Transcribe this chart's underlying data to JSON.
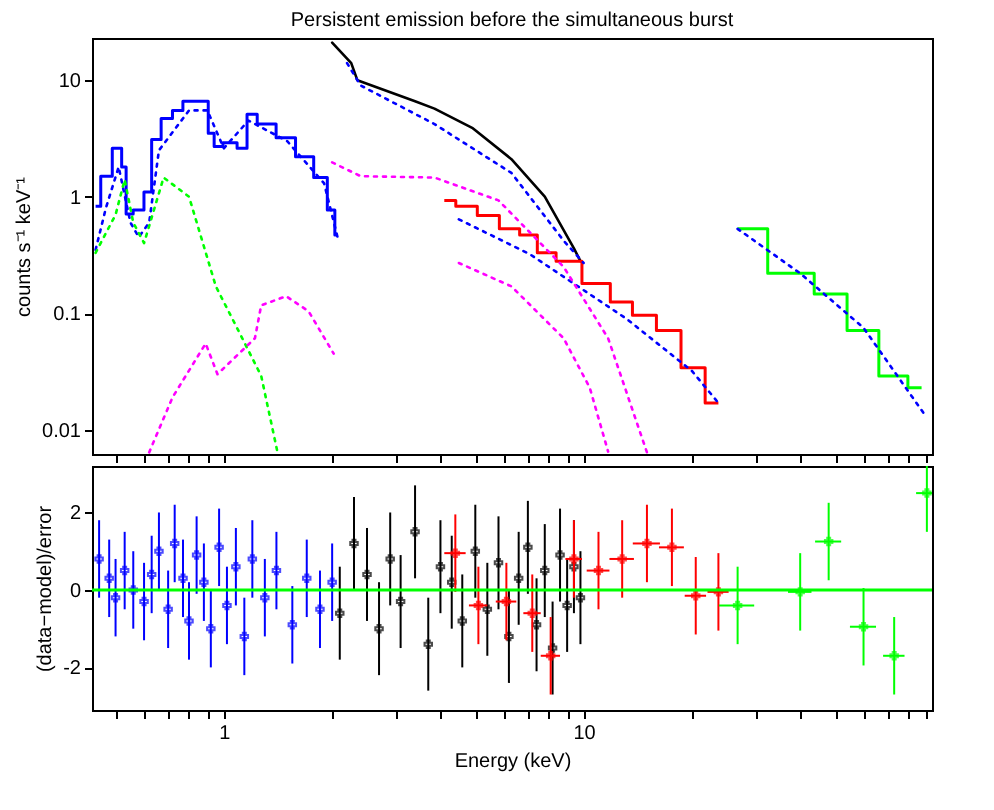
{
  "chart_data": [
    {
      "type": "line",
      "title": "Persistent emission before the simultaneous burst",
      "ylabel": "counts s⁻¹ keV⁻¹",
      "log": "xy",
      "tick_labels": "y",
      "grid": false,
      "xlim": [
        0.43,
        93
      ],
      "ylim": [
        0.0062,
        23
      ],
      "xticks": [
        {
          "value": 0.5,
          "label": null
        },
        {
          "value": 0.6,
          "label": null
        },
        {
          "value": 0.7,
          "label": null
        },
        {
          "value": 0.8,
          "label": null
        },
        {
          "value": 0.9,
          "label": null
        },
        {
          "value": 1,
          "label": null
        },
        {
          "value": 2,
          "label": null
        },
        {
          "value": 3,
          "label": null
        },
        {
          "value": 4,
          "label": null
        },
        {
          "value": 5,
          "label": null
        },
        {
          "value": 6,
          "label": null
        },
        {
          "value": 7,
          "label": null
        },
        {
          "value": 8,
          "label": null
        },
        {
          "value": 9,
          "label": null
        },
        {
          "value": 10,
          "label": null
        },
        {
          "value": 20,
          "label": null
        },
        {
          "value": 30,
          "label": null
        },
        {
          "value": 40,
          "label": null
        },
        {
          "value": 50,
          "label": null
        },
        {
          "value": 60,
          "label": null
        },
        {
          "value": 70,
          "label": null
        },
        {
          "value": 80,
          "label": null
        },
        {
          "value": 90,
          "label": null
        }
      ],
      "yticks": [
        0.01,
        0.1,
        1,
        10
      ],
      "series": [
        {
          "type": "step",
          "color": "#0000ff",
          "x": [
            0.44,
            0.47,
            0.51,
            0.53,
            0.54,
            0.58,
            0.62,
            0.64,
            0.7,
            0.74,
            0.8,
            0.89,
            0.92,
            0.96,
            1.03,
            1.15,
            1.17,
            1.31,
            1.49,
            1.68,
            1.88,
            2.0,
            2.07
          ],
          "values": [
            0.83,
            1.5,
            2.6,
            1.8,
            0.71,
            0.77,
            1.1,
            3.1,
            4.7,
            5.5,
            6.6,
            6.6,
            3.5,
            2.7,
            2.9,
            2.6,
            5.1,
            4.2,
            3.2,
            2.2,
            1.46,
            0.77,
            0.47
          ]
        },
        {
          "color": "#000000",
          "x": [
            2.0,
            2.26,
            2.35,
            3.4,
            3.85,
            4.9,
            6.3,
            7.8,
            9.4,
            9.8
          ],
          "values": [
            21,
            14,
            10,
            6.6,
            5.7,
            3.9,
            2.1,
            1.0,
            0.36,
            0.28
          ]
        },
        {
          "type": "step",
          "color": "#ff0000",
          "x": [
            4.1,
            4.75,
            5.4,
            6.3,
            7.0,
            7.9,
            8.9,
            11.0,
            12.8,
            14.6,
            17.4,
            20.0,
            23.7
          ],
          "values": [
            0.93,
            0.83,
            0.69,
            0.53,
            0.47,
            0.33,
            0.28,
            0.18,
            0.125,
            0.096,
            0.071,
            0.034,
            0.017
          ]
        },
        {
          "type": "step",
          "color": "#00ff00",
          "x": [
            26.8,
            39.4,
            48.6,
            60,
            73,
            87
          ],
          "values": [
            0.53,
            0.22,
            0.146,
            0.071,
            0.029,
            0.023
          ]
        },
        {
          "line_style": "dotted",
          "color": "#0000ff",
          "x": [
            0.44,
            0.47,
            0.51,
            0.55,
            0.58,
            0.62,
            0.66,
            0.8,
            0.9,
            1.0,
            1.17,
            1.5,
            1.9,
            2.07
          ],
          "values": [
            0.35,
            0.8,
            1.8,
            0.6,
            0.45,
            0.6,
            2.5,
            5.5,
            5.5,
            2.6,
            4.5,
            3.0,
            1.3,
            0.45
          ]
        },
        {
          "line_style": "dotted",
          "color": "#0000ff",
          "x": [
            2.2,
            2.4,
            3.85,
            6.3,
            8.8,
            10
          ],
          "values": [
            14,
            9,
            4.2,
            1.6,
            0.42,
            0.27
          ]
        },
        {
          "line_style": "dotted",
          "color": "#0000ff",
          "x": [
            4.5,
            7.1,
            13.2,
            20,
            23.7
          ],
          "values": [
            0.64,
            0.32,
            0.089,
            0.032,
            0.017
          ]
        },
        {
          "line_style": "dotted",
          "color": "#0000ff",
          "x": [
            26.8,
            40,
            60,
            88
          ],
          "values": [
            0.53,
            0.22,
            0.075,
            0.014
          ]
        },
        {
          "line_style": "dotted",
          "color": "#00ff00",
          "x": [
            0.44,
            0.5,
            0.53,
            0.56,
            0.6,
            0.68,
            0.8,
            0.95,
            1.1,
            1.27,
            1.41
          ],
          "values": [
            0.33,
            0.7,
            1.4,
            0.6,
            0.4,
            1.46,
            1.0,
            0.17,
            0.07,
            0.029,
            0.0064
          ]
        },
        {
          "line_style": "dotted",
          "color": "#ff00ff",
          "x": [
            0.62,
            0.72,
            0.89,
            0.96,
            1.22,
            1.27,
            1.49,
            1.72,
            2.02
          ],
          "values": [
            0.0064,
            0.019,
            0.055,
            0.03,
            0.061,
            0.117,
            0.14,
            0.104,
            0.045
          ]
        },
        {
          "line_style": "dotted",
          "color": "#ff00ff",
          "x": [
            2.0,
            2.4,
            3.85,
            5.8,
            8.8,
            11.7,
            15
          ],
          "values": [
            1.97,
            1.5,
            1.46,
            0.93,
            0.25,
            0.061,
            0.0064
          ]
        },
        {
          "line_style": "dotted",
          "color": "#ff00ff",
          "x": [
            4.5,
            6.3,
            8.8,
            10.4,
            11.7
          ],
          "values": [
            0.27,
            0.17,
            0.061,
            0.023,
            0.0065
          ]
        }
      ]
    },
    {
      "type": "scatter",
      "xlabel": "Energy (keV)",
      "ylabel": "(data−model)/error",
      "log": "x",
      "grid": false,
      "marker": "cross",
      "xlim": [
        0.43,
        93
      ],
      "ylim": [
        -3.1,
        3.2
      ],
      "xticks": [
        {
          "value": 0.5,
          "label": null
        },
        {
          "value": 0.6,
          "label": null
        },
        {
          "value": 0.7,
          "label": null
        },
        {
          "value": 0.8,
          "label": null
        },
        {
          "value": 0.9,
          "label": null
        },
        1,
        {
          "value": 2,
          "label": null
        },
        {
          "value": 3,
          "label": null
        },
        {
          "value": 4,
          "label": null
        },
        {
          "value": 5,
          "label": null
        },
        {
          "value": 6,
          "label": null
        },
        {
          "value": 7,
          "label": null
        },
        {
          "value": 8,
          "label": null
        },
        {
          "value": 9,
          "label": null
        },
        10,
        {
          "value": 20,
          "label": null
        },
        {
          "value": 30,
          "label": null
        },
        {
          "value": 40,
          "label": null
        },
        {
          "value": 50,
          "label": null
        },
        {
          "value": 60,
          "label": null
        },
        {
          "value": 70,
          "label": null
        },
        {
          "value": 80,
          "label": null
        },
        {
          "value": 90,
          "label": null
        }
      ],
      "yticks": [
        -2,
        0,
        2
      ],
      "ref_lines": [
        {
          "axis": "y",
          "value": 0,
          "color": "#00ff00"
        }
      ],
      "series": [
        {
          "color": "#0000ff",
          "x": [
            0.45,
            0.48,
            0.5,
            0.53,
            0.56,
            0.6,
            0.63,
            0.66,
            0.7,
            0.73,
            0.77,
            0.8,
            0.84,
            0.88,
            0.92,
            0.97,
            1.02,
            1.08,
            1.14,
            1.2,
            1.3,
            1.4,
            1.55,
            1.7,
            1.85,
            2.0
          ],
          "values": [
            0.8,
            0.3,
            -0.2,
            0.5,
            0,
            -0.3,
            0.4,
            1.0,
            -0.5,
            1.2,
            0.3,
            -0.8,
            0.9,
            0.2,
            -1.0,
            1.1,
            -0.4,
            0.6,
            -1.2,
            0.8,
            -0.2,
            0.5,
            -0.9,
            0.3,
            -0.5,
            0.2
          ],
          "errors": [
            1,
            1,
            1,
            1,
            1,
            1,
            1,
            1,
            1,
            1,
            1,
            1,
            1,
            1,
            1,
            1,
            1,
            1,
            1,
            1,
            1,
            1,
            1,
            1,
            1,
            1
          ]
        },
        {
          "color": "#000000",
          "x": [
            2.1,
            2.3,
            2.5,
            2.7,
            2.9,
            3.1,
            3.4,
            3.7,
            4.0,
            4.3,
            4.6,
            5.0,
            5.4,
            5.8,
            6.2,
            6.6,
            7.0,
            7.4,
            7.8,
            8.2,
            8.6,
            9.0,
            9.4,
            9.8
          ],
          "values": [
            -0.6,
            1.2,
            0.4,
            -1.0,
            0.8,
            -0.3,
            1.5,
            -1.4,
            0.6,
            0.2,
            -0.8,
            1.0,
            -0.5,
            0.7,
            -1.2,
            0.3,
            1.1,
            -0.9,
            0.5,
            -1.5,
            0.9,
            -0.4,
            0.6,
            -0.2
          ],
          "errors": [
            1.2,
            1.2,
            1.2,
            1.2,
            1.2,
            1.2,
            1.2,
            1.2,
            1.2,
            1.2,
            1.2,
            1.2,
            1.2,
            1.2,
            1.2,
            1.2,
            1.2,
            1.2,
            1.2,
            1.2,
            1.2,
            1.2,
            1.2,
            1.2
          ]
        },
        {
          "color": "#ff0000",
          "x": [
            4.4,
            5.1,
            6.1,
            7.2,
            8.1,
            9.4,
            11,
            12.8,
            15,
            17.6,
            20.5,
            23.7
          ],
          "values": [
            0.95,
            -0.4,
            -0.3,
            -0.6,
            -1.7,
            0.8,
            0.5,
            0.8,
            1.2,
            1.1,
            -0.15,
            -0.05
          ],
          "errors": [
            1,
            1,
            1,
            1,
            1,
            1,
            1,
            1,
            1,
            1,
            1,
            1
          ],
          "xerrors": [
            0.3,
            0.3,
            0.4,
            0.4,
            0.5,
            0.5,
            0.8,
            1,
            1.3,
            1.4,
            1.4,
            1.6
          ]
        },
        {
          "color": "#00ff00",
          "x": [
            26.8,
            40,
            48,
            60,
            73,
            90
          ],
          "values": [
            -0.4,
            -0.05,
            1.25,
            -0.95,
            -1.7,
            2.5
          ],
          "errors": [
            1,
            1,
            1,
            1,
            1,
            1
          ],
          "xerrors": [
            3,
            3,
            4,
            5,
            5,
            6
          ]
        }
      ]
    }
  ]
}
